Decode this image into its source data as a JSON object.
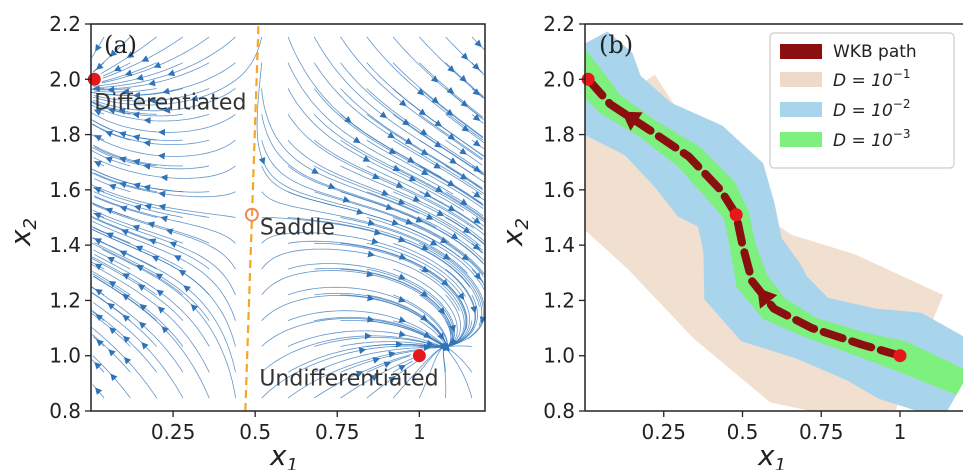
{
  "chart_data": [
    {
      "type": "scatter",
      "panel_label": "(a)",
      "xlabel": "x",
      "xlabel_sub": "1",
      "ylabel": "x",
      "ylabel_sub": "2",
      "xlim": [
        0.0,
        1.2
      ],
      "ylim": [
        0.8,
        2.2
      ],
      "xticks": [
        0.25,
        0.5,
        0.75,
        1.0
      ],
      "xtick_labels": [
        "0.25",
        "0.5",
        "0.75",
        "1"
      ],
      "yticks": [
        0.8,
        1.0,
        1.2,
        1.4,
        1.6,
        1.8,
        2.0,
        2.2
      ],
      "ytick_labels": [
        "0.8",
        "1.0",
        "1.2",
        "1.4",
        "1.6",
        "1.8",
        "2.0",
        "2.2"
      ],
      "grid": false,
      "streamline_color": "#2f73b8",
      "separatrix": {
        "style": "dashed",
        "color": "#f5a623",
        "x": [
          0.47,
          0.48,
          0.49,
          0.5,
          0.51
        ],
        "y": [
          0.8,
          1.15,
          1.5,
          1.85,
          2.2
        ]
      },
      "points": [
        {
          "label": "Differentiated",
          "x": 0.01,
          "y": 2.0,
          "marker": "filled",
          "color": "#e8171c"
        },
        {
          "label": "Saddle",
          "x": 0.49,
          "y": 1.51,
          "marker": "hollow",
          "color": "#f08a5d"
        },
        {
          "label": "Undifferentiated",
          "x": 1.0,
          "y": 1.0,
          "marker": "filled",
          "color": "#e8171c"
        }
      ]
    },
    {
      "type": "line",
      "panel_label": "(b)",
      "xlabel": "x",
      "xlabel_sub": "1",
      "ylabel": "x",
      "ylabel_sub": "2",
      "xlim": [
        0.0,
        1.2
      ],
      "ylim": [
        0.8,
        2.2
      ],
      "xticks": [
        0.25,
        0.5,
        0.75,
        1.0
      ],
      "xtick_labels": [
        "0.25",
        "0.5",
        "0.75",
        "1"
      ],
      "yticks": [
        0.8,
        1.0,
        1.2,
        1.4,
        1.6,
        1.8,
        2.0,
        2.2
      ],
      "ytick_labels": [
        "0.8",
        "1.0",
        "1.2",
        "1.4",
        "1.6",
        "1.8",
        "2.0",
        "2.2"
      ],
      "grid": false,
      "legend_position": "top-right",
      "series": [
        {
          "name": "WKB path",
          "color": "#8b0f0f",
          "style": "dashed",
          "x": [
            1.0,
            0.88,
            0.72,
            0.6,
            0.53,
            0.5,
            0.48,
            0.43,
            0.33,
            0.2,
            0.08,
            0.01
          ],
          "y": [
            1.0,
            1.04,
            1.1,
            1.17,
            1.27,
            1.4,
            1.51,
            1.6,
            1.72,
            1.82,
            1.91,
            2.0
          ]
        },
        {
          "name": "D = 10^-1",
          "legend_text": "D = 10",
          "legend_exp": "−1",
          "color": "#efd9c8",
          "halfwidth": 0.3,
          "x": [
            1.05,
            0.72,
            0.5,
            0.3,
            0.0
          ],
          "y": [
            0.98,
            1.1,
            1.25,
            1.45,
            1.85
          ]
        },
        {
          "name": "D = 10^-2",
          "legend_text": "D = 10",
          "legend_exp": "−2",
          "color": "#a9d5ec",
          "halfwidth": 0.17
        },
        {
          "name": "D = 10^-3",
          "legend_text": "D = 10",
          "legend_exp": "−3",
          "color": "#7df07d",
          "halfwidth": 0.055
        }
      ],
      "points": [
        {
          "x": 0.01,
          "y": 2.0,
          "color": "#e8171c"
        },
        {
          "x": 0.48,
          "y": 1.51,
          "color": "#e8171c"
        },
        {
          "x": 1.0,
          "y": 1.0,
          "color": "#e8171c"
        }
      ]
    }
  ]
}
